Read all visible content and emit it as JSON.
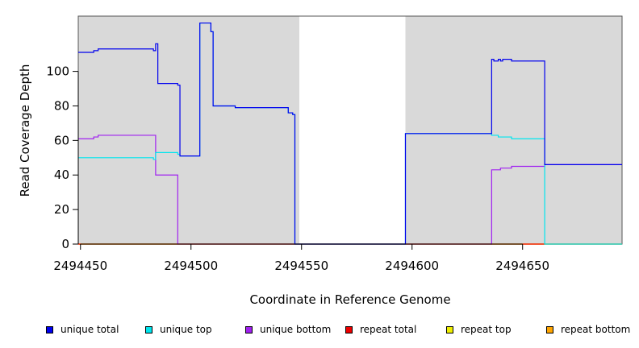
{
  "chart_data": {
    "type": "line",
    "xlabel": "Coordinate in Reference Genome",
    "ylabel": "Read Coverage Depth",
    "xlim": [
      2494449,
      2494695
    ],
    "ylim": [
      0,
      132
    ],
    "x_ticks": [
      2494450,
      2494500,
      2494550,
      2494600,
      2494650
    ],
    "y_ticks": [
      0,
      20,
      40,
      60,
      80,
      100
    ],
    "shaded_regions": [
      [
        2494449,
        2494549
      ],
      [
        2494597,
        2494695
      ]
    ],
    "legend_position": "bottom",
    "series": [
      {
        "name": "unique total",
        "color": "#0000ee",
        "x": [
          2494449,
          2494456,
          2494457,
          2494458,
          2494483,
          2494484,
          2494485,
          2494494,
          2494495,
          2494504,
          2494508,
          2494509,
          2494510,
          2494520,
          2494540,
          2494544,
          2494545,
          2494546,
          2494547,
          2494597,
          2494636,
          2494637,
          2494639,
          2494640,
          2494641,
          2494644,
          2494645,
          2494649,
          2494650,
          2494659,
          2494660,
          2494695
        ],
        "y": [
          111,
          112,
          112,
          113,
          112,
          116,
          93,
          92,
          51,
          128,
          128,
          123,
          80,
          79,
          79,
          76,
          76,
          75,
          0,
          64,
          107,
          106,
          107,
          106,
          107,
          107,
          106,
          106,
          106,
          106,
          46,
          46
        ]
      },
      {
        "name": "unique top",
        "color": "#00e5ee",
        "x": [
          2494449,
          2494483,
          2494484,
          2494485,
          2494494,
          2494495,
          2494504,
          2494508,
          2494509,
          2494510,
          2494520,
          2494540,
          2494544,
          2494545,
          2494546,
          2494547,
          2494597,
          2494636,
          2494637,
          2494639,
          2494640,
          2494641,
          2494644,
          2494645,
          2494649,
          2494650,
          2494659,
          2494660,
          2494695
        ],
        "y": [
          50,
          49,
          53,
          53,
          52,
          51,
          128,
          128,
          123,
          80,
          79,
          79,
          76,
          76,
          75,
          0,
          64,
          63,
          63,
          62,
          62,
          62,
          62,
          61,
          61,
          61,
          61,
          0,
          0
        ]
      },
      {
        "name": "unique bottom",
        "color": "#a020f0",
        "x": [
          2494449,
          2494456,
          2494457,
          2494458,
          2494483,
          2494484,
          2494485,
          2494494,
          2494495,
          2494636,
          2494640,
          2494641,
          2494644,
          2494645,
          2494660,
          2494695
        ],
        "y": [
          61,
          62,
          62,
          63,
          63,
          40,
          40,
          0,
          0,
          43,
          44,
          44,
          44,
          45,
          46,
          46
        ]
      },
      {
        "name": "repeat total",
        "color": "#ee0000",
        "x": [
          2494449,
          2494695
        ],
        "y": [
          0,
          0
        ]
      },
      {
        "name": "repeat top",
        "color": "#eeee00",
        "x": [
          2494449,
          2494695
        ],
        "y": [
          0,
          0
        ]
      },
      {
        "name": "repeat bottom",
        "color": "#ffa500",
        "x": [
          2494449,
          2494695
        ],
        "y": [
          0,
          0
        ]
      }
    ]
  }
}
